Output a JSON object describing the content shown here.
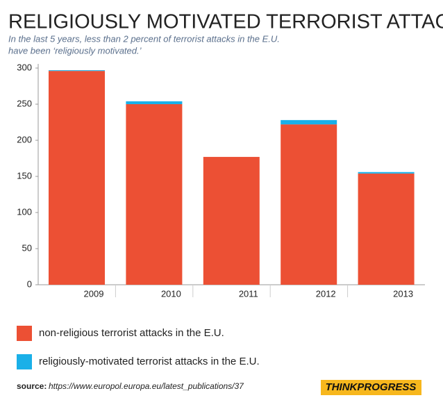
{
  "chart_data": {
    "type": "stacked-bar",
    "title": "RELIGIOUSLY MOTIVATED TERRORIST ATTACKS",
    "subtitle": [
      "In the last 5 years, less than 2 percent of terrorist attacks in the E.U.",
      "have been ‘religiously motivated.’"
    ],
    "categories": [
      "2009",
      "2010",
      "2011",
      "2012",
      "2013"
    ],
    "series": [
      {
        "name": "non-religious terrorist attacks in the E.U.",
        "color": "#ec5034",
        "values": [
          296,
          250,
          177,
          222,
          154
        ]
      },
      {
        "name": "religiously-motivated terrorist attacks in the E.U.",
        "color": "#1ab0e8",
        "values": [
          1,
          4,
          0,
          6,
          2
        ]
      }
    ],
    "ylim": [
      0,
      300
    ],
    "yticks": [
      0,
      50,
      100,
      150,
      200,
      250,
      300
    ],
    "source_label": "source:",
    "source": "https://www.europol.europa.eu/latest_publications/37",
    "brand": "THINKPROGRESS"
  }
}
